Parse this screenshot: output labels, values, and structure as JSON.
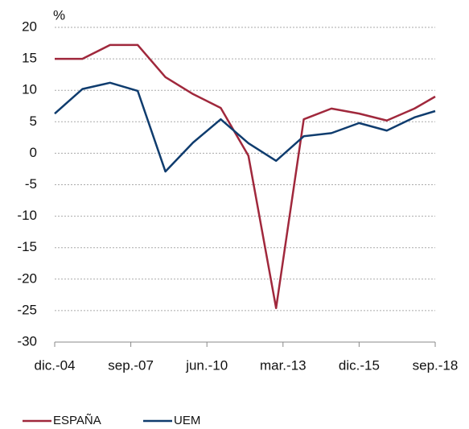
{
  "chart_data": {
    "type": "line",
    "y_label": "%",
    "x": [
      0,
      1,
      2,
      3,
      4,
      5,
      6,
      7,
      8,
      9,
      10,
      11,
      12,
      13,
      13.75
    ],
    "xlim": [
      0,
      13.75
    ],
    "xticks": [
      {
        "value": 0,
        "label": "dic.-04"
      },
      {
        "value": 2.75,
        "label": "sep.-07"
      },
      {
        "value": 5.5,
        "label": "jun.-10"
      },
      {
        "value": 8.25,
        "label": "mar.-13"
      },
      {
        "value": 11,
        "label": "dic.-15"
      },
      {
        "value": 13.75,
        "label": "sep.-18"
      }
    ],
    "ylim": [
      -30,
      20
    ],
    "yticks": [
      -30,
      -25,
      -20,
      -15,
      -10,
      -5,
      0,
      5,
      10,
      15,
      20
    ],
    "grid": true,
    "series": [
      {
        "name": "ESPAÑA",
        "color": "#a0283c",
        "values": [
          15,
          15,
          17.2,
          17.2,
          12.1,
          9.4,
          7.2,
          -0.4,
          -24.6,
          5.4,
          7.1,
          6.3,
          5.2,
          7.1,
          9.0
        ]
      },
      {
        "name": "UEM",
        "color": "#0f3c6e",
        "values": [
          6.3,
          10.2,
          11.2,
          9.9,
          -2.9,
          1.7,
          5.4,
          1.6,
          -1.2,
          2.7,
          3.2,
          4.8,
          3.6,
          5.7,
          6.7
        ]
      }
    ]
  }
}
